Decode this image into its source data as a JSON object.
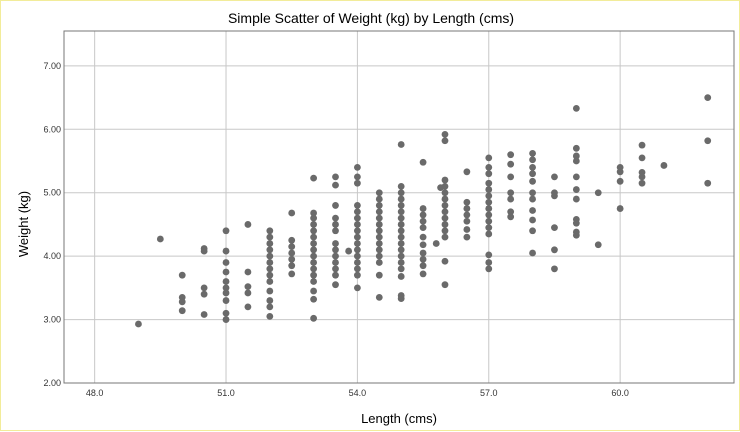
{
  "chart_data": {
    "type": "scatter",
    "title": "Simple Scatter of Weight (kg) by Length (cms)",
    "xlabel": "Length (cms)",
    "ylabel": "Weight (kg)",
    "xlim": [
      47.3,
      62.6
    ],
    "ylim": [
      2.0,
      7.55
    ],
    "xticks": [
      48.0,
      51.0,
      54.0,
      57.0,
      60.0
    ],
    "xtick_labels": [
      "48.0",
      "51.0",
      "54.0",
      "57.0",
      "60.0"
    ],
    "yticks": [
      2.0,
      3.0,
      4.0,
      5.0,
      6.0,
      7.0
    ],
    "ytick_labels": [
      "2.00",
      "3.00",
      "4.00",
      "5.00",
      "6.00",
      "7.00"
    ],
    "grid": true,
    "marker_color": "#6a6a6a",
    "points": [
      [
        49.0,
        2.93
      ],
      [
        49.5,
        4.27
      ],
      [
        50.0,
        3.7
      ],
      [
        50.0,
        3.35
      ],
      [
        50.0,
        3.28
      ],
      [
        50.0,
        3.14
      ],
      [
        50.5,
        4.12
      ],
      [
        50.5,
        4.08
      ],
      [
        50.5,
        3.5
      ],
      [
        50.5,
        3.4
      ],
      [
        50.5,
        3.08
      ],
      [
        51.0,
        4.4
      ],
      [
        51.0,
        4.08
      ],
      [
        51.0,
        3.9
      ],
      [
        51.0,
        3.75
      ],
      [
        51.0,
        3.6
      ],
      [
        51.0,
        3.5
      ],
      [
        51.0,
        3.42
      ],
      [
        51.0,
        3.3
      ],
      [
        51.0,
        3.1
      ],
      [
        51.0,
        3.0
      ],
      [
        51.5,
        3.75
      ],
      [
        51.5,
        3.52
      ],
      [
        51.5,
        3.42
      ],
      [
        51.5,
        3.2
      ],
      [
        52.0,
        3.6
      ],
      [
        52.0,
        3.45
      ],
      [
        52.0,
        3.3
      ],
      [
        52.0,
        3.2
      ],
      [
        52.0,
        3.05
      ],
      [
        51.5,
        4.5
      ],
      [
        52.0,
        4.4
      ],
      [
        52.0,
        4.3
      ],
      [
        52.0,
        4.2
      ],
      [
        52.0,
        4.1
      ],
      [
        52.0,
        4.0
      ],
      [
        52.0,
        3.9
      ],
      [
        52.0,
        3.8
      ],
      [
        52.0,
        3.7
      ],
      [
        52.5,
        4.25
      ],
      [
        52.5,
        4.15
      ],
      [
        52.5,
        4.05
      ],
      [
        52.5,
        3.95
      ],
      [
        52.5,
        3.85
      ],
      [
        52.5,
        3.72
      ],
      [
        52.5,
        4.68
      ],
      [
        53.0,
        5.23
      ],
      [
        53.0,
        4.68
      ],
      [
        53.0,
        4.6
      ],
      [
        53.0,
        4.5
      ],
      [
        53.0,
        4.4
      ],
      [
        53.0,
        4.3
      ],
      [
        53.0,
        4.2
      ],
      [
        53.0,
        4.1
      ],
      [
        53.0,
        4.0
      ],
      [
        53.0,
        3.9
      ],
      [
        53.0,
        3.8
      ],
      [
        53.0,
        3.7
      ],
      [
        53.0,
        3.6
      ],
      [
        53.0,
        3.45
      ],
      [
        53.0,
        3.32
      ],
      [
        53.0,
        3.02
      ],
      [
        53.5,
        5.25
      ],
      [
        53.5,
        5.12
      ],
      [
        53.5,
        4.8
      ],
      [
        53.5,
        4.6
      ],
      [
        53.5,
        4.5
      ],
      [
        53.5,
        4.4
      ],
      [
        53.5,
        4.2
      ],
      [
        53.5,
        4.1
      ],
      [
        53.5,
        4.0
      ],
      [
        53.5,
        3.9
      ],
      [
        53.5,
        3.8
      ],
      [
        53.5,
        3.7
      ],
      [
        53.5,
        3.55
      ],
      [
        53.8,
        4.08
      ],
      [
        54.0,
        5.4
      ],
      [
        54.0,
        5.25
      ],
      [
        54.0,
        5.15
      ],
      [
        54.0,
        4.8
      ],
      [
        54.0,
        4.7
      ],
      [
        54.0,
        4.6
      ],
      [
        54.0,
        4.5
      ],
      [
        54.0,
        4.4
      ],
      [
        54.0,
        4.3
      ],
      [
        54.0,
        4.2
      ],
      [
        54.0,
        4.1
      ],
      [
        54.0,
        4.0
      ],
      [
        54.0,
        3.9
      ],
      [
        54.0,
        3.8
      ],
      [
        54.0,
        3.7
      ],
      [
        54.0,
        3.5
      ],
      [
        54.5,
        5.0
      ],
      [
        54.5,
        4.9
      ],
      [
        54.5,
        4.8
      ],
      [
        54.5,
        4.7
      ],
      [
        54.5,
        4.6
      ],
      [
        54.5,
        4.5
      ],
      [
        54.5,
        4.4
      ],
      [
        54.5,
        4.3
      ],
      [
        54.5,
        4.2
      ],
      [
        54.5,
        4.1
      ],
      [
        54.5,
        4.0
      ],
      [
        54.5,
        3.9
      ],
      [
        54.5,
        3.7
      ],
      [
        54.5,
        3.35
      ],
      [
        55.0,
        5.76
      ],
      [
        55.0,
        5.1
      ],
      [
        55.0,
        5.0
      ],
      [
        55.0,
        4.9
      ],
      [
        55.0,
        4.8
      ],
      [
        55.0,
        4.7
      ],
      [
        55.0,
        4.6
      ],
      [
        55.0,
        4.5
      ],
      [
        55.0,
        4.4
      ],
      [
        55.0,
        4.3
      ],
      [
        55.0,
        4.2
      ],
      [
        55.0,
        4.1
      ],
      [
        55.0,
        4.0
      ],
      [
        55.0,
        3.9
      ],
      [
        55.0,
        3.8
      ],
      [
        55.0,
        3.68
      ],
      [
        55.0,
        3.38
      ],
      [
        55.0,
        3.33
      ],
      [
        55.5,
        5.48
      ],
      [
        55.5,
        4.75
      ],
      [
        55.5,
        4.65
      ],
      [
        55.5,
        4.55
      ],
      [
        55.5,
        4.45
      ],
      [
        55.5,
        4.3
      ],
      [
        55.5,
        4.18
      ],
      [
        55.5,
        4.05
      ],
      [
        55.5,
        3.95
      ],
      [
        55.5,
        3.85
      ],
      [
        55.5,
        3.72
      ],
      [
        55.8,
        4.2
      ],
      [
        56.0,
        5.92
      ],
      [
        56.0,
        5.82
      ],
      [
        56.0,
        5.2
      ],
      [
        56.0,
        5.1
      ],
      [
        56.0,
        5.0
      ],
      [
        56.0,
        4.9
      ],
      [
        56.0,
        4.8
      ],
      [
        56.0,
        4.7
      ],
      [
        56.0,
        4.6
      ],
      [
        56.0,
        4.5
      ],
      [
        56.0,
        4.4
      ],
      [
        56.0,
        4.3
      ],
      [
        56.0,
        3.92
      ],
      [
        56.0,
        3.55
      ],
      [
        55.9,
        5.08
      ],
      [
        56.5,
        5.33
      ],
      [
        56.5,
        4.85
      ],
      [
        56.5,
        4.75
      ],
      [
        56.5,
        4.65
      ],
      [
        56.5,
        4.55
      ],
      [
        56.5,
        4.42
      ],
      [
        56.5,
        4.3
      ],
      [
        57.0,
        5.55
      ],
      [
        57.0,
        5.4
      ],
      [
        57.0,
        5.3
      ],
      [
        57.0,
        5.15
      ],
      [
        57.0,
        5.05
      ],
      [
        57.0,
        4.95
      ],
      [
        57.0,
        4.85
      ],
      [
        57.0,
        4.75
      ],
      [
        57.0,
        4.65
      ],
      [
        57.0,
        4.55
      ],
      [
        57.0,
        4.45
      ],
      [
        57.0,
        4.35
      ],
      [
        57.0,
        4.02
      ],
      [
        57.0,
        3.9
      ],
      [
        57.0,
        3.8
      ],
      [
        57.5,
        5.6
      ],
      [
        57.5,
        5.45
      ],
      [
        57.5,
        5.25
      ],
      [
        57.5,
        5.0
      ],
      [
        57.5,
        4.9
      ],
      [
        57.5,
        4.7
      ],
      [
        57.5,
        4.62
      ],
      [
        58.0,
        5.62
      ],
      [
        58.0,
        5.52
      ],
      [
        58.0,
        5.4
      ],
      [
        58.0,
        5.3
      ],
      [
        58.0,
        5.18
      ],
      [
        58.0,
        5.0
      ],
      [
        58.0,
        4.9
      ],
      [
        58.0,
        4.72
      ],
      [
        58.0,
        4.57
      ],
      [
        58.0,
        4.4
      ],
      [
        58.0,
        4.05
      ],
      [
        58.5,
        5.25
      ],
      [
        58.5,
        5.0
      ],
      [
        58.5,
        4.95
      ],
      [
        58.5,
        4.45
      ],
      [
        58.5,
        4.1
      ],
      [
        58.5,
        3.8
      ],
      [
        59.0,
        6.33
      ],
      [
        59.0,
        5.7
      ],
      [
        59.0,
        5.58
      ],
      [
        59.0,
        5.5
      ],
      [
        59.0,
        5.25
      ],
      [
        59.0,
        5.05
      ],
      [
        59.0,
        4.9
      ],
      [
        59.0,
        4.58
      ],
      [
        59.0,
        4.52
      ],
      [
        59.0,
        4.38
      ],
      [
        59.0,
        4.33
      ],
      [
        59.5,
        5.0
      ],
      [
        59.5,
        4.18
      ],
      [
        60.0,
        5.4
      ],
      [
        60.0,
        5.33
      ],
      [
        60.0,
        5.18
      ],
      [
        60.0,
        4.75
      ],
      [
        60.5,
        5.75
      ],
      [
        60.5,
        5.55
      ],
      [
        60.5,
        5.32
      ],
      [
        60.5,
        5.25
      ],
      [
        60.5,
        5.15
      ],
      [
        61.0,
        5.43
      ],
      [
        62.0,
        6.5
      ],
      [
        62.0,
        5.82
      ],
      [
        62.0,
        5.15
      ]
    ]
  }
}
